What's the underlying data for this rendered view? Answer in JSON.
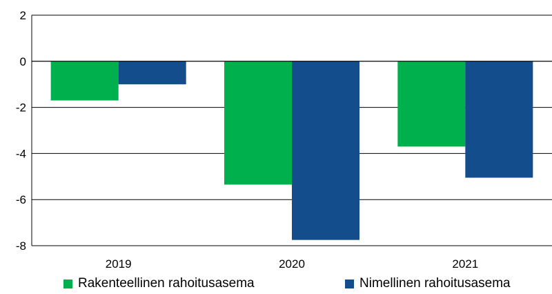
{
  "chart_data": {
    "type": "bar",
    "categories": [
      "2019",
      "2020",
      "2021"
    ],
    "series": [
      {
        "name": "Rakenteellinen rahoitusasema",
        "color": "#00B04C",
        "values": [
          -1.7,
          -5.35,
          -3.7
        ]
      },
      {
        "name": "Nimellinen rahoitusasema",
        "color": "#134D8C",
        "values": [
          -1.0,
          -7.75,
          -5.05
        ]
      }
    ],
    "ylim": [
      -8,
      2
    ],
    "yticks": [
      2,
      0,
      -2,
      -4,
      -6,
      -8
    ],
    "grid": true,
    "legend": "bottom"
  }
}
